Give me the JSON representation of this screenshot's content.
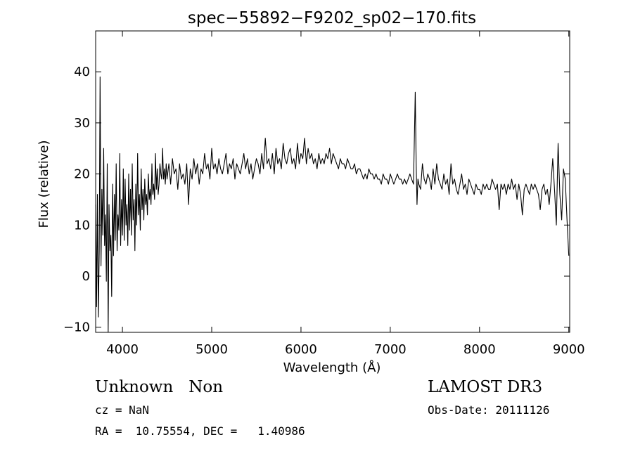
{
  "chart_data": {
    "type": "line",
    "title": "spec−55892−F9202_sp02−170.fits",
    "xlabel": "Wavelength (Å)",
    "ylabel": "Flux (relative)",
    "xlim": [
      3700,
      9010
    ],
    "ylim": [
      -11,
      48
    ],
    "x_ticks": [
      4000,
      5000,
      6000,
      7000,
      8000,
      9000
    ],
    "x_tick_labels": [
      "4000",
      "5000",
      "6000",
      "7000",
      "8000",
      "9000"
    ],
    "y_ticks": [
      -10,
      0,
      10,
      20,
      30,
      40
    ],
    "y_tick_labels": [
      "−10",
      "0",
      "10",
      "20",
      "30",
      "40"
    ],
    "series": [
      {
        "name": "flux",
        "x": [
          3700,
          3710,
          3720,
          3730,
          3740,
          3750,
          3760,
          3770,
          3780,
          3790,
          3800,
          3810,
          3820,
          3830,
          3840,
          3850,
          3860,
          3870,
          3880,
          3890,
          3900,
          3910,
          3920,
          3930,
          3940,
          3950,
          3960,
          3970,
          3980,
          3990,
          4000,
          4010,
          4020,
          4030,
          4040,
          4050,
          4060,
          4070,
          4080,
          4090,
          4100,
          4110,
          4120,
          4130,
          4140,
          4150,
          4160,
          4170,
          4180,
          4190,
          4200,
          4210,
          4220,
          4230,
          4240,
          4250,
          4260,
          4270,
          4280,
          4290,
          4300,
          4310,
          4320,
          4330,
          4340,
          4350,
          4360,
          4370,
          4380,
          4390,
          4400,
          4410,
          4420,
          4430,
          4440,
          4450,
          4460,
          4470,
          4480,
          4490,
          4500,
          4520,
          4540,
          4560,
          4580,
          4600,
          4620,
          4640,
          4660,
          4680,
          4700,
          4720,
          4740,
          4760,
          4780,
          4800,
          4820,
          4840,
          4860,
          4880,
          4900,
          4920,
          4940,
          4960,
          4980,
          5000,
          5020,
          5040,
          5060,
          5080,
          5100,
          5120,
          5140,
          5160,
          5180,
          5200,
          5220,
          5240,
          5260,
          5280,
          5300,
          5320,
          5340,
          5360,
          5380,
          5400,
          5420,
          5440,
          5460,
          5480,
          5500,
          5520,
          5540,
          5560,
          5580,
          5600,
          5620,
          5640,
          5660,
          5680,
          5700,
          5720,
          5740,
          5760,
          5780,
          5800,
          5820,
          5840,
          5860,
          5880,
          5900,
          5920,
          5940,
          5960,
          5980,
          6000,
          6020,
          6040,
          6060,
          6080,
          6100,
          6120,
          6140,
          6160,
          6180,
          6200,
          6220,
          6240,
          6260,
          6280,
          6300,
          6320,
          6340,
          6360,
          6380,
          6400,
          6420,
          6440,
          6460,
          6480,
          6500,
          6520,
          6540,
          6560,
          6580,
          6600,
          6620,
          6640,
          6660,
          6680,
          6700,
          6720,
          6740,
          6760,
          6780,
          6800,
          6820,
          6840,
          6860,
          6880,
          6900,
          6920,
          6940,
          6960,
          6980,
          7000,
          7020,
          7040,
          7060,
          7080,
          7100,
          7120,
          7140,
          7160,
          7180,
          7200,
          7220,
          7240,
          7260,
          7280,
          7290,
          7300,
          7310,
          7320,
          7340,
          7360,
          7380,
          7400,
          7420,
          7440,
          7460,
          7480,
          7500,
          7520,
          7540,
          7560,
          7580,
          7600,
          7620,
          7640,
          7660,
          7680,
          7700,
          7720,
          7740,
          7760,
          7780,
          7800,
          7820,
          7840,
          7860,
          7880,
          7900,
          7920,
          7940,
          7960,
          7980,
          8000,
          8020,
          8040,
          8060,
          8080,
          8100,
          8120,
          8140,
          8160,
          8180,
          8200,
          8220,
          8240,
          8260,
          8280,
          8300,
          8320,
          8340,
          8360,
          8380,
          8400,
          8420,
          8440,
          8460,
          8480,
          8500,
          8520,
          8540,
          8560,
          8580,
          8600,
          8620,
          8640,
          8660,
          8680,
          8700,
          8720,
          8740,
          8760,
          8780,
          8800,
          8820,
          8840,
          8860,
          8880,
          8900,
          8920,
          8940,
          8960,
          8980,
          9000
        ],
        "y": [
          14,
          -6,
          16,
          -8,
          5,
          39,
          2,
          17,
          8,
          25,
          6,
          12,
          -1,
          22,
          -11,
          14,
          5,
          8,
          -4,
          18,
          4,
          16,
          7,
          22,
          5,
          12,
          9,
          24,
          6,
          15,
          8,
          21,
          7,
          19,
          10,
          14,
          6,
          20,
          9,
          17,
          8,
          22,
          11,
          15,
          5,
          18,
          10,
          24,
          12,
          16,
          9,
          21,
          13,
          17,
          11,
          19,
          14,
          16,
          12,
          20,
          15,
          17,
          14,
          22,
          16,
          18,
          15,
          24,
          17,
          21,
          16,
          18,
          22,
          20,
          19,
          25,
          19,
          21,
          18,
          22,
          19,
          22,
          18,
          23,
          20,
          21,
          17,
          22,
          19,
          20,
          18,
          22,
          14,
          21,
          19,
          23,
          20,
          22,
          18,
          21,
          20,
          24,
          21,
          22,
          19,
          25,
          21,
          22,
          20,
          23,
          21,
          20,
          22,
          24,
          20,
          22,
          21,
          23,
          19,
          22,
          21,
          20,
          22,
          24,
          21,
          23,
          20,
          22,
          19,
          21,
          23,
          22,
          20,
          24,
          21,
          27,
          22,
          23,
          21,
          24,
          20,
          25,
          22,
          23,
          21,
          26,
          23,
          22,
          24,
          25,
          22,
          23,
          21,
          26,
          22,
          24,
          23,
          27,
          22,
          25,
          23,
          24,
          22,
          23,
          21,
          24,
          22,
          23,
          22,
          24,
          23,
          25,
          22,
          24,
          23,
          22,
          21,
          23,
          22,
          22,
          21,
          23,
          22,
          21,
          21,
          22,
          20,
          21,
          21,
          20,
          19,
          20,
          19,
          21,
          20,
          20,
          19,
          20,
          19,
          19,
          18,
          20,
          19,
          19,
          18,
          20,
          19,
          18,
          19,
          20,
          19,
          19,
          18,
          19,
          18,
          19,
          20,
          19,
          18,
          36,
          22,
          14,
          19,
          18,
          17,
          22,
          19,
          18,
          20,
          19,
          17,
          21,
          18,
          22,
          19,
          18,
          17,
          20,
          18,
          19,
          16,
          22,
          18,
          19,
          17,
          16,
          18,
          20,
          17,
          18,
          16,
          19,
          18,
          17,
          16,
          18,
          17,
          17,
          16,
          18,
          17,
          18,
          17,
          17,
          19,
          18,
          17,
          18,
          13,
          18,
          17,
          18,
          16,
          18,
          17,
          19,
          17,
          18,
          15,
          18,
          16,
          12,
          17,
          18,
          17,
          16,
          18,
          17,
          18,
          17,
          16,
          13,
          17,
          18,
          16,
          17,
          14,
          18,
          23,
          17,
          10,
          26,
          16,
          11,
          21,
          19,
          11,
          4
        ]
      }
    ]
  },
  "info": {
    "left_line1": "Unknown   Non",
    "left_line2": "cz = NaN",
    "left_line3": "RA =  10.75554, DEC =   1.40986",
    "right_line1": "LAMOST DR3",
    "right_line2": "Obs-Date: 20111126"
  }
}
